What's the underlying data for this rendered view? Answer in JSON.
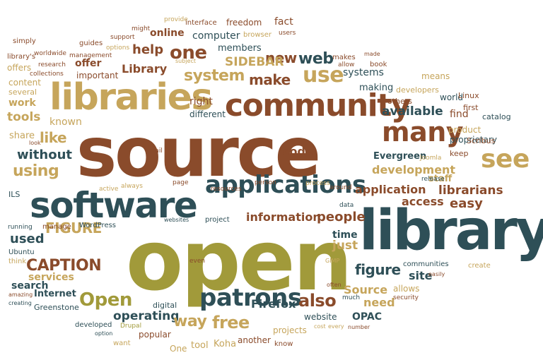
{
  "colors": {
    "brown": "#8a4b2b",
    "teal": "#2e4f57",
    "olive": "#a19a3a",
    "tan": "#c6a55b",
    "background": "#ffffff"
  },
  "words": [
    "source",
    "open",
    "library",
    "libraries",
    "software",
    "community",
    "applications",
    "many",
    "use",
    "patrons",
    "see",
    "one",
    "system",
    "make",
    "web",
    "new",
    "SIDEBAR",
    "help",
    "Library",
    "tools",
    "like",
    "using",
    "without",
    "available",
    "development",
    "application",
    "librarians",
    "access",
    "easy",
    "information",
    "people",
    "FIGURE",
    "CAPTION",
    "figure",
    "Open",
    "operating",
    "way",
    "free",
    "also",
    "Source",
    "need",
    "Firefox",
    "code",
    "Evergreen",
    "staff",
    "just",
    "time",
    "used",
    "site",
    "search",
    "services",
    "Internet",
    "Greenstone",
    "popular",
    "tool",
    "Koha",
    "another",
    "projects",
    "website",
    "OPAC",
    "another",
    "work",
    "share",
    "known",
    "right",
    "different",
    "online",
    "computer",
    "members",
    "offer",
    "important",
    "systems",
    "making",
    "others",
    "means",
    "developers",
    "find",
    "world",
    "product",
    "proprietary",
    "Scribus",
    "catalog",
    "Linux",
    "first",
    "keep",
    "Joomla",
    "release",
    "around",
    "process",
    "person",
    "resources",
    "page",
    "always",
    "active",
    "email",
    "look",
    "content",
    "several",
    "offers",
    "library's",
    "simply",
    "worldwide",
    "guides",
    "support",
    "options",
    "research",
    "collections",
    "management",
    "might",
    "provide",
    "interface",
    "freedom",
    "fact",
    "browser",
    "users",
    "makes",
    "allow",
    "book",
    "made",
    "subject",
    "ILS",
    "running",
    "manage",
    "WordPress",
    "Ubuntu",
    "think",
    "amazing",
    "creating",
    "developed",
    "option",
    "Drupal",
    "want",
    "One",
    "digital",
    "even",
    "websites",
    "project",
    "data",
    "GIMP",
    "often",
    "much",
    "cost",
    "every",
    "number",
    "security",
    "allows",
    "communities",
    "easily",
    "create",
    "know"
  ]
}
